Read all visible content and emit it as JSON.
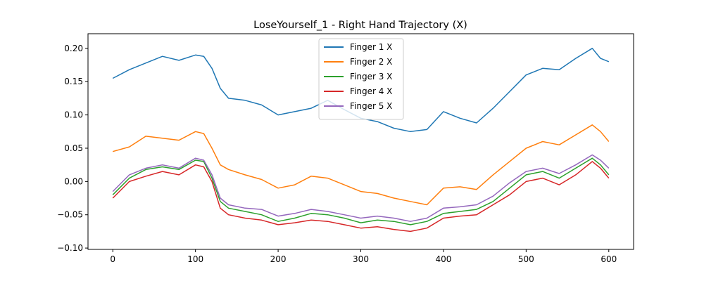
{
  "chart_data": {
    "type": "line",
    "title": "LoseYourself_1 - Right Hand Trajectory (X)",
    "xlabel": "",
    "ylabel": "",
    "xlim": [
      -30,
      630
    ],
    "ylim": [
      -0.102,
      0.222
    ],
    "xticks": [
      0,
      100,
      200,
      300,
      400,
      500,
      600
    ],
    "xtick_labels": [
      "0",
      "100",
      "200",
      "300",
      "400",
      "500",
      "600"
    ],
    "yticks": [
      -0.1,
      -0.05,
      0.0,
      0.05,
      0.1,
      0.15,
      0.2
    ],
    "ytick_labels": [
      "−0.10",
      "−0.05",
      "0.00",
      "0.05",
      "0.10",
      "0.15",
      "0.20"
    ],
    "grid": false,
    "legend_position": "top-center",
    "colors": [
      "#1f77b4",
      "#ff7f0e",
      "#2ca02c",
      "#d62728",
      "#9467bd"
    ],
    "series": [
      {
        "name": "Finger 1 X",
        "x": [
          0,
          20,
          40,
          60,
          80,
          100,
          110,
          120,
          130,
          140,
          160,
          180,
          200,
          220,
          240,
          260,
          280,
          300,
          320,
          340,
          360,
          380,
          400,
          420,
          440,
          460,
          480,
          500,
          520,
          540,
          560,
          580,
          590,
          600
        ],
        "values": [
          0.155,
          0.168,
          0.178,
          0.188,
          0.182,
          0.19,
          0.188,
          0.17,
          0.14,
          0.125,
          0.122,
          0.115,
          0.1,
          0.105,
          0.11,
          0.122,
          0.108,
          0.095,
          0.09,
          0.08,
          0.075,
          0.078,
          0.105,
          0.095,
          0.088,
          0.11,
          0.135,
          0.16,
          0.17,
          0.168,
          0.185,
          0.2,
          0.185,
          0.18
        ]
      },
      {
        "name": "Finger 2 X",
        "x": [
          0,
          20,
          40,
          60,
          80,
          100,
          110,
          120,
          130,
          140,
          160,
          180,
          200,
          220,
          240,
          260,
          280,
          300,
          320,
          340,
          360,
          380,
          400,
          420,
          440,
          460,
          480,
          500,
          520,
          540,
          560,
          580,
          590,
          600
        ],
        "values": [
          0.045,
          0.052,
          0.068,
          0.065,
          0.062,
          0.075,
          0.072,
          0.05,
          0.025,
          0.018,
          0.01,
          0.003,
          -0.01,
          -0.005,
          0.008,
          0.005,
          -0.005,
          -0.015,
          -0.018,
          -0.025,
          -0.03,
          -0.035,
          -0.01,
          -0.008,
          -0.012,
          0.01,
          0.03,
          0.05,
          0.06,
          0.055,
          0.07,
          0.085,
          0.075,
          0.06
        ]
      },
      {
        "name": "Finger 3 X",
        "x": [
          0,
          20,
          40,
          60,
          80,
          100,
          110,
          120,
          130,
          140,
          160,
          180,
          200,
          220,
          240,
          260,
          280,
          300,
          320,
          340,
          360,
          380,
          400,
          420,
          440,
          460,
          480,
          500,
          520,
          540,
          560,
          580,
          590,
          600
        ],
        "values": [
          -0.02,
          0.005,
          0.018,
          0.022,
          0.018,
          0.032,
          0.03,
          0.005,
          -0.03,
          -0.04,
          -0.045,
          -0.05,
          -0.06,
          -0.055,
          -0.048,
          -0.05,
          -0.055,
          -0.062,
          -0.058,
          -0.06,
          -0.065,
          -0.06,
          -0.048,
          -0.045,
          -0.042,
          -0.03,
          -0.01,
          0.01,
          0.015,
          0.005,
          0.02,
          0.035,
          0.025,
          0.01
        ]
      },
      {
        "name": "Finger 4 X",
        "x": [
          0,
          20,
          40,
          60,
          80,
          100,
          110,
          120,
          130,
          140,
          160,
          180,
          200,
          220,
          240,
          260,
          280,
          300,
          320,
          340,
          360,
          380,
          400,
          420,
          440,
          460,
          480,
          500,
          520,
          540,
          560,
          580,
          590,
          600
        ],
        "values": [
          -0.025,
          0.0,
          0.008,
          0.015,
          0.01,
          0.025,
          0.022,
          0.0,
          -0.04,
          -0.05,
          -0.055,
          -0.058,
          -0.065,
          -0.062,
          -0.058,
          -0.06,
          -0.065,
          -0.07,
          -0.068,
          -0.072,
          -0.075,
          -0.07,
          -0.055,
          -0.052,
          -0.05,
          -0.035,
          -0.02,
          0.0,
          0.005,
          -0.005,
          0.01,
          0.03,
          0.02,
          0.005
        ]
      },
      {
        "name": "Finger 5 X",
        "x": [
          0,
          20,
          40,
          60,
          80,
          100,
          110,
          120,
          130,
          140,
          160,
          180,
          200,
          220,
          240,
          260,
          280,
          300,
          320,
          340,
          360,
          380,
          400,
          420,
          440,
          460,
          480,
          500,
          520,
          540,
          560,
          580,
          590,
          600
        ],
        "values": [
          -0.015,
          0.01,
          0.02,
          0.025,
          0.02,
          0.035,
          0.032,
          0.01,
          -0.025,
          -0.035,
          -0.04,
          -0.042,
          -0.052,
          -0.048,
          -0.042,
          -0.045,
          -0.05,
          -0.055,
          -0.052,
          -0.055,
          -0.06,
          -0.055,
          -0.04,
          -0.038,
          -0.035,
          -0.022,
          -0.002,
          0.015,
          0.02,
          0.012,
          0.025,
          0.04,
          0.032,
          0.02
        ]
      }
    ]
  }
}
